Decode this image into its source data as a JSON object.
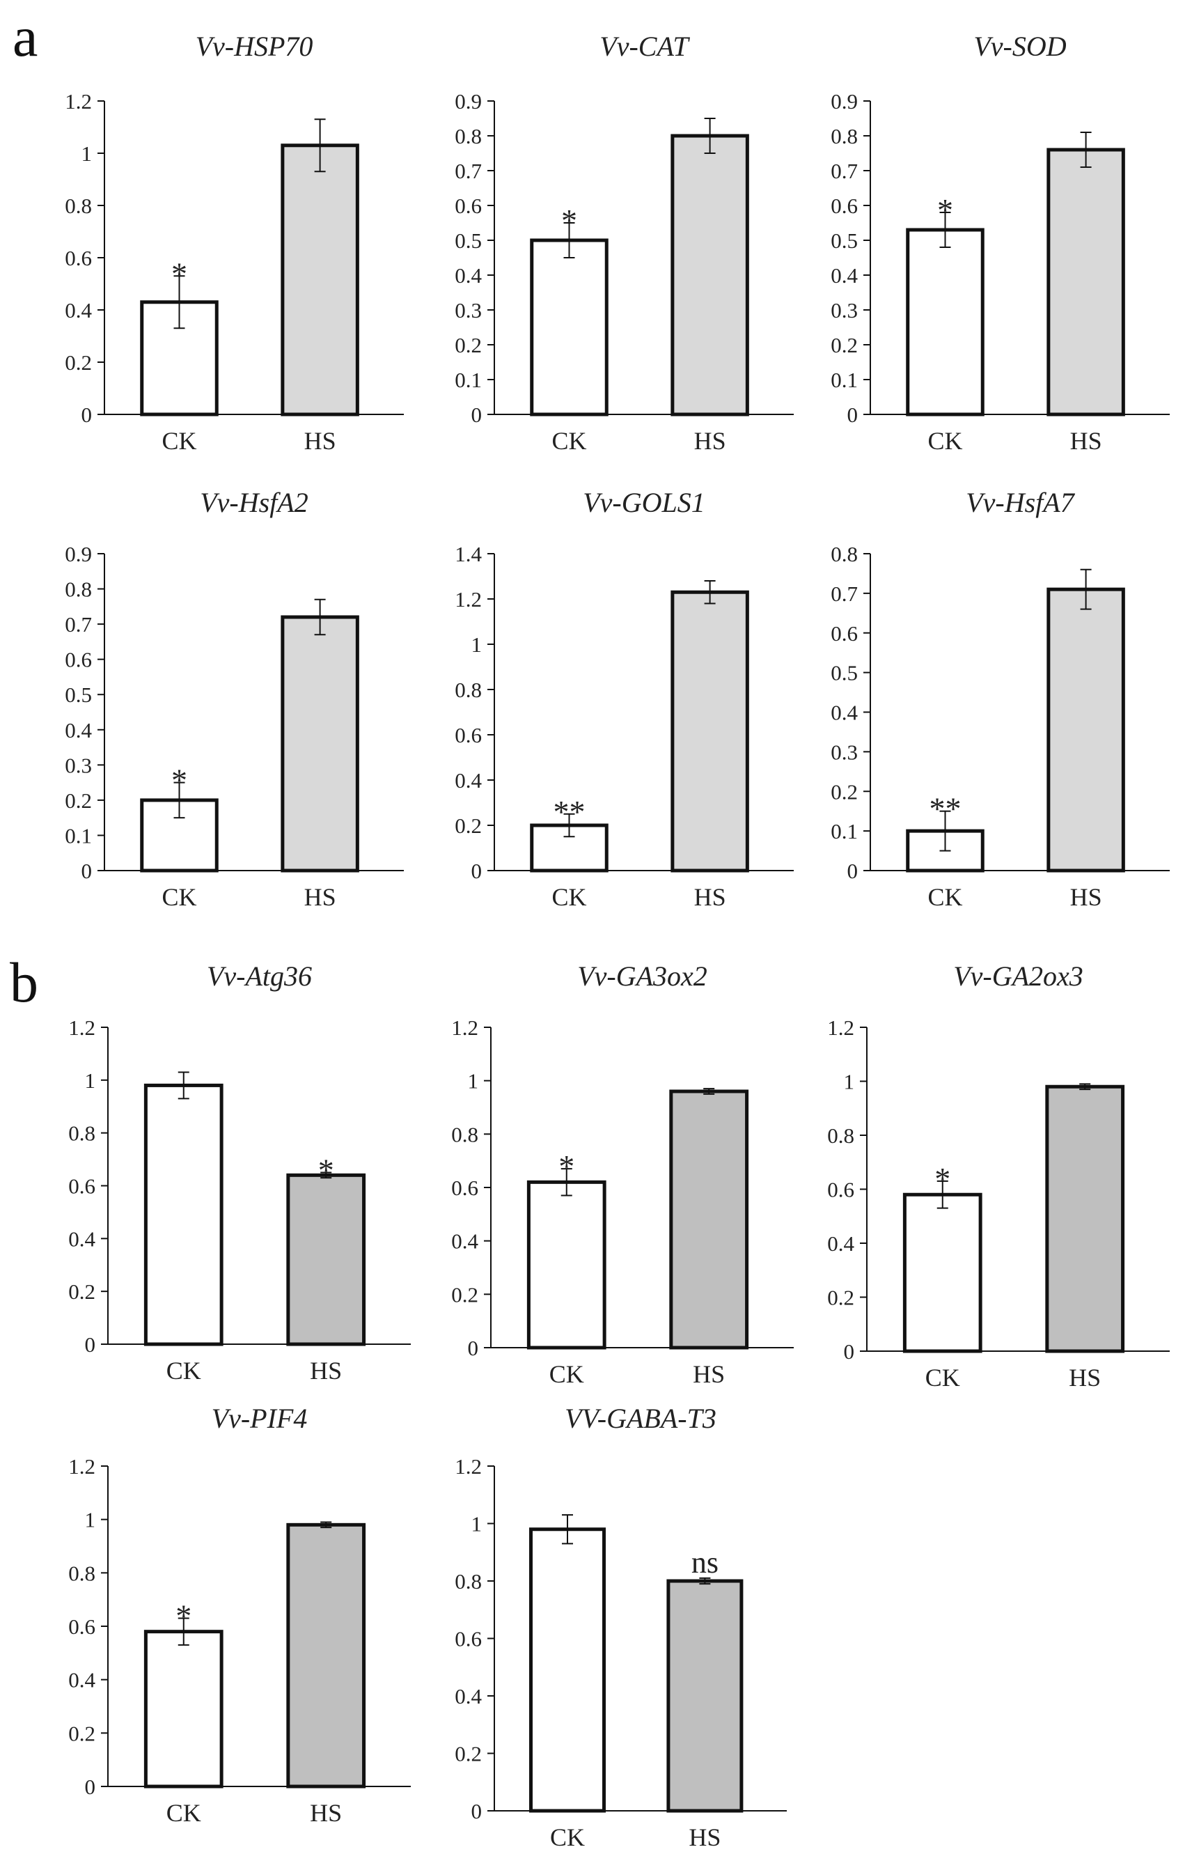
{
  "panels": [
    {
      "label": "a"
    },
    {
      "label": "b"
    }
  ],
  "colors": {
    "ck_fill": "#ffffff",
    "hs_fill_a": "#d9d9d9",
    "hs_fill_b": "#bfbfbf",
    "stroke": "#111111"
  },
  "chart_data": [
    {
      "panel": "a",
      "type": "bar",
      "title": "Vv-HSP70",
      "categories": [
        "CK",
        "HS"
      ],
      "values": [
        0.43,
        1.03
      ],
      "errors": [
        0.1,
        0.1
      ],
      "significance": [
        "*",
        ""
      ],
      "ylim": [
        0,
        1.2
      ],
      "yticks": [
        "0",
        "0.2",
        "0.4",
        "0.6",
        "0.8",
        "1",
        "1.2"
      ]
    },
    {
      "panel": "a",
      "type": "bar",
      "title": "Vv-CAT",
      "categories": [
        "CK",
        "HS"
      ],
      "values": [
        0.5,
        0.8
      ],
      "errors": [
        0.05,
        0.05
      ],
      "significance": [
        "*",
        ""
      ],
      "ylim": [
        0,
        0.9
      ],
      "yticks": [
        "0",
        "0.1",
        "0.2",
        "0.3",
        "0.4",
        "0.5",
        "0.6",
        "0.7",
        "0.8",
        "0.9"
      ]
    },
    {
      "panel": "a",
      "type": "bar",
      "title": "Vv-SOD",
      "categories": [
        "CK",
        "HS"
      ],
      "values": [
        0.53,
        0.76
      ],
      "errors": [
        0.05,
        0.05
      ],
      "significance": [
        "*",
        ""
      ],
      "ylim": [
        0,
        0.9
      ],
      "yticks": [
        "0",
        "0.1",
        "0.2",
        "0.3",
        "0.4",
        "0.5",
        "0.6",
        "0.7",
        "0.8",
        "0.9"
      ]
    },
    {
      "panel": "a",
      "type": "bar",
      "title": "Vv-HsfA2",
      "categories": [
        "CK",
        "HS"
      ],
      "values": [
        0.2,
        0.72
      ],
      "errors": [
        0.05,
        0.05
      ],
      "significance": [
        "*",
        ""
      ],
      "ylim": [
        0,
        0.9
      ],
      "yticks": [
        "0",
        "0.1",
        "0.2",
        "0.3",
        "0.4",
        "0.5",
        "0.6",
        "0.7",
        "0.8",
        "0.9"
      ]
    },
    {
      "panel": "a",
      "type": "bar",
      "title": "Vv-GOLS1",
      "categories": [
        "CK",
        "HS"
      ],
      "values": [
        0.2,
        1.23
      ],
      "errors": [
        0.05,
        0.05
      ],
      "significance": [
        "**",
        ""
      ],
      "ylim": [
        0,
        1.4
      ],
      "yticks": [
        "0",
        "0.2",
        "0.4",
        "0.6",
        "0.8",
        "1",
        "1.2",
        "1.4"
      ]
    },
    {
      "panel": "a",
      "type": "bar",
      "title": "Vv-HsfA7",
      "categories": [
        "CK",
        "HS"
      ],
      "values": [
        0.1,
        0.71
      ],
      "errors": [
        0.05,
        0.05
      ],
      "significance": [
        "**",
        ""
      ],
      "ylim": [
        0,
        0.8
      ],
      "yticks": [
        "0",
        "0.1",
        "0.2",
        "0.3",
        "0.4",
        "0.5",
        "0.6",
        "0.7",
        "0.8"
      ]
    },
    {
      "panel": "b",
      "type": "bar",
      "title": "Vv-Atg36",
      "categories": [
        "CK",
        "HS"
      ],
      "values": [
        0.98,
        0.64
      ],
      "errors": [
        0.05,
        0.01
      ],
      "significance": [
        "",
        "*"
      ],
      "ylim": [
        0,
        1.2
      ],
      "yticks": [
        "0",
        "0.2",
        "0.4",
        "0.6",
        "0.8",
        "1",
        "1.2"
      ]
    },
    {
      "panel": "b",
      "type": "bar",
      "title": "Vv-GA3ox2",
      "categories": [
        "CK",
        "HS"
      ],
      "values": [
        0.62,
        0.96
      ],
      "errors": [
        0.05,
        0.01
      ],
      "significance": [
        "*",
        ""
      ],
      "ylim": [
        0,
        1.2
      ],
      "yticks": [
        "0",
        "0.2",
        "0.4",
        "0.6",
        "0.8",
        "1",
        "1.2"
      ]
    },
    {
      "panel": "b",
      "type": "bar",
      "title": "Vv-GA2ox3",
      "categories": [
        "CK",
        "HS"
      ],
      "values": [
        0.58,
        0.98
      ],
      "errors": [
        0.05,
        0.01
      ],
      "significance": [
        "*",
        ""
      ],
      "ylim": [
        0,
        1.2
      ],
      "yticks": [
        "0",
        "0.2",
        "0.4",
        "0.6",
        "0.8",
        "1",
        "1.2"
      ]
    },
    {
      "panel": "b",
      "type": "bar",
      "title": "Vv-PIF4",
      "categories": [
        "CK",
        "HS"
      ],
      "values": [
        0.58,
        0.98
      ],
      "errors": [
        0.05,
        0.01
      ],
      "significance": [
        "*",
        ""
      ],
      "ylim": [
        0,
        1.2
      ],
      "yticks": [
        "0",
        "0.2",
        "0.4",
        "0.6",
        "0.8",
        "1",
        "1.2"
      ]
    },
    {
      "panel": "b",
      "type": "bar",
      "title": "VV-GABA-T3",
      "categories": [
        "CK",
        "HS"
      ],
      "values": [
        0.98,
        0.8
      ],
      "errors": [
        0.05,
        0.01
      ],
      "significance": [
        "",
        "ns"
      ],
      "ylim": [
        0,
        1.2
      ],
      "yticks": [
        "0",
        "0.2",
        "0.4",
        "0.6",
        "0.8",
        "1",
        "1.2"
      ]
    }
  ]
}
